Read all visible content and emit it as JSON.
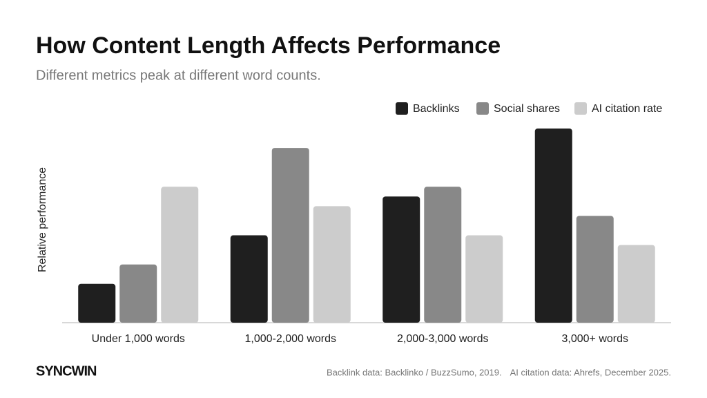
{
  "chart_data": {
    "type": "bar",
    "title": "How Content Length Affects Performance",
    "subtitle": "Different metrics peak at different word counts.",
    "y_label": "Relative performance",
    "categories": [
      "Under 1,000 words",
      "1,000-2,000 words",
      "2,000-3,000 words",
      "3,000+ words"
    ],
    "series": [
      {
        "name": "Backlinks",
        "color": "#1f1f1f",
        "values": [
          20,
          45,
          65,
          100
        ]
      },
      {
        "name": "Social shares",
        "color": "#888888",
        "values": [
          30,
          90,
          70,
          55
        ]
      },
      {
        "name": "AI citation rate",
        "color": "#cccccc",
        "values": [
          70,
          60,
          45,
          40
        ]
      }
    ],
    "legend": "top-right",
    "sources": [
      "Backlink data: Backlinko / BuzzSumo, 2019.",
      "AI citation data: Ahrefs, December 2025."
    ],
    "brand": "SYNCWIN"
  }
}
